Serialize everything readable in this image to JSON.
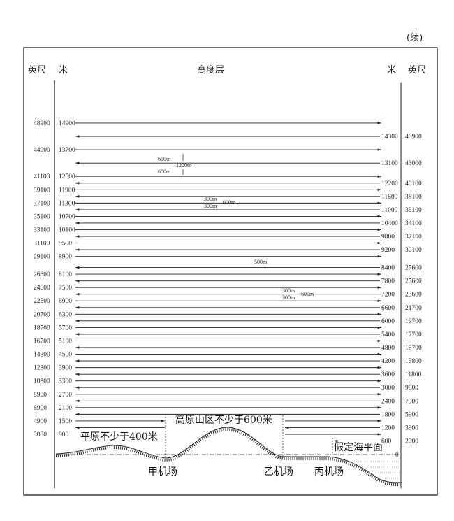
{
  "continued_label": "(续)",
  "header": {
    "left_ft": "英尺",
    "left_m": "米",
    "title": "高度层",
    "right_m": "米",
    "right_ft": "英尺"
  },
  "left_levels": [
    {
      "m": "14900",
      "ft": "48900"
    },
    {
      "m": "13700",
      "ft": "44900"
    },
    {
      "m": "12500",
      "ft": "41100"
    },
    {
      "m": "11900",
      "ft": "39100"
    },
    {
      "m": "11300",
      "ft": "37100"
    },
    {
      "m": "10700",
      "ft": "35100"
    },
    {
      "m": "10100",
      "ft": "33100"
    },
    {
      "m": "9500",
      "ft": "31100"
    },
    {
      "m": "8900",
      "ft": "29100"
    },
    {
      "m": "8100",
      "ft": "26600"
    },
    {
      "m": "7500",
      "ft": "24600"
    },
    {
      "m": "6900",
      "ft": "22600"
    },
    {
      "m": "6300",
      "ft": "20700"
    },
    {
      "m": "5700",
      "ft": "18700"
    },
    {
      "m": "5100",
      "ft": "16700"
    },
    {
      "m": "4500",
      "ft": "14800"
    },
    {
      "m": "3900",
      "ft": "12800"
    },
    {
      "m": "3300",
      "ft": "10800"
    },
    {
      "m": "2700",
      "ft": "8900"
    },
    {
      "m": "2100",
      "ft": "6900"
    },
    {
      "m": "1500",
      "ft": "4900"
    },
    {
      "m": "900",
      "ft": "3000"
    }
  ],
  "right_levels": [
    {
      "m": "14300",
      "ft": "46900"
    },
    {
      "m": "13100",
      "ft": "43000"
    },
    {
      "m": "12200",
      "ft": "40100"
    },
    {
      "m": "11600",
      "ft": "38100"
    },
    {
      "m": "11000",
      "ft": "36100"
    },
    {
      "m": "10400",
      "ft": "34100"
    },
    {
      "m": "9800",
      "ft": "32100"
    },
    {
      "m": "9200",
      "ft": "30100"
    },
    {
      "m": "8400",
      "ft": "27600"
    },
    {
      "m": "7800",
      "ft": "25600"
    },
    {
      "m": "7200",
      "ft": "23600"
    },
    {
      "m": "6600",
      "ft": "21700"
    },
    {
      "m": "6000",
      "ft": "19700"
    },
    {
      "m": "5400",
      "ft": "17700"
    },
    {
      "m": "4800",
      "ft": "15700"
    },
    {
      "m": "4200",
      "ft": "13800"
    },
    {
      "m": "3600",
      "ft": "11800"
    },
    {
      "m": "3000",
      "ft": "9800"
    },
    {
      "m": "2400",
      "ft": "7900"
    },
    {
      "m": "1800",
      "ft": "5900"
    },
    {
      "m": "1200",
      "ft": "3900"
    },
    {
      "m": "600",
      "ft": "2000"
    }
  ],
  "sea_level_value": "0",
  "annotations": {
    "sep1": {
      "top": "600m",
      "mid": "1200m",
      "bottom": "600m"
    },
    "sep2": {
      "top": "300m",
      "mid": "600m",
      "bottom": "300m"
    },
    "sep3": "500m",
    "sep4": {
      "top": "300m",
      "mid": "600m",
      "bottom": "300m"
    }
  },
  "terrain": {
    "plain": "平原不少于400米",
    "plateau": "高原山区不少于600米",
    "sea_level": "假定海平面",
    "airport_a": "甲机场",
    "airport_b": "乙机场",
    "airport_c": "丙机场"
  }
}
